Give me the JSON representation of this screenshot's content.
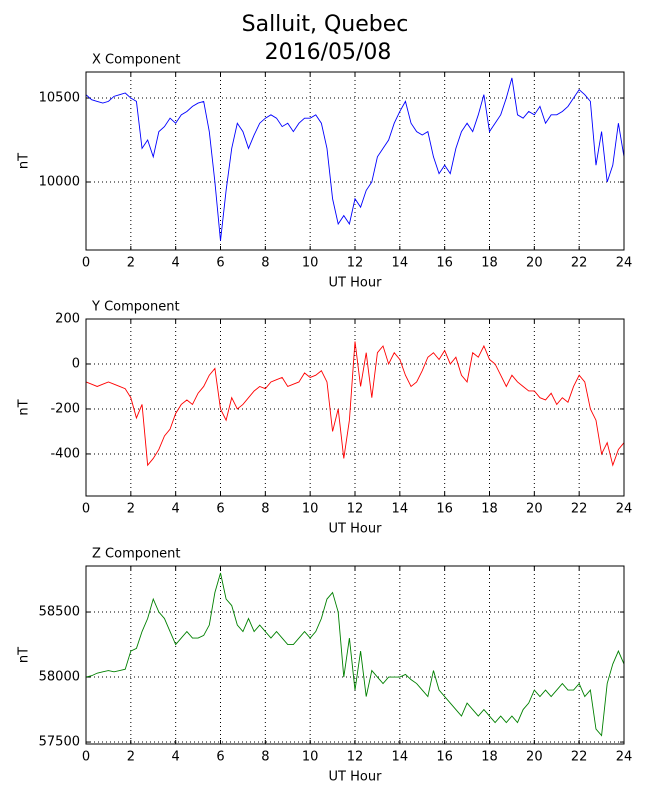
{
  "figure": {
    "title": "Salluit, Quebec",
    "subtitle": "2016/05/08"
  },
  "chart_data": [
    {
      "type": "line",
      "title": "X Component",
      "xlabel": "UT Hour",
      "ylabel": "nT",
      "color": "#0000ff",
      "grid": true,
      "xlim": [
        0,
        24
      ],
      "xticks": [
        0,
        2,
        4,
        6,
        8,
        10,
        12,
        14,
        16,
        18,
        20,
        22,
        24
      ],
      "ylim": [
        9595,
        10655
      ],
      "yticks": [
        10000,
        10500
      ],
      "x": [
        0,
        0.25,
        0.5,
        0.75,
        1,
        1.25,
        1.5,
        1.75,
        2,
        2.25,
        2.5,
        2.75,
        3,
        3.25,
        3.5,
        3.75,
        4,
        4.25,
        4.5,
        4.75,
        5,
        5.25,
        5.5,
        5.75,
        6,
        6.25,
        6.5,
        6.75,
        7,
        7.25,
        7.5,
        7.75,
        8,
        8.25,
        8.5,
        8.75,
        9,
        9.25,
        9.5,
        9.75,
        10,
        10.25,
        10.5,
        10.75,
        11,
        11.25,
        11.5,
        11.75,
        12,
        12.25,
        12.5,
        12.75,
        13,
        13.25,
        13.5,
        13.75,
        14,
        14.25,
        14.5,
        14.75,
        15,
        15.25,
        15.5,
        15.75,
        16,
        16.25,
        16.5,
        16.75,
        17,
        17.25,
        17.5,
        17.75,
        18,
        18.25,
        18.5,
        18.75,
        19,
        19.25,
        19.5,
        19.75,
        20,
        20.25,
        20.5,
        20.75,
        21,
        21.25,
        21.5,
        21.75,
        22,
        22.25,
        22.5,
        22.75,
        23,
        23.25,
        23.5,
        23.75,
        24
      ],
      "values": [
        10520,
        10490,
        10480,
        10470,
        10480,
        10510,
        10520,
        10530,
        10500,
        10480,
        10200,
        10250,
        10150,
        10300,
        10330,
        10380,
        10350,
        10400,
        10420,
        10450,
        10470,
        10480,
        10300,
        10000,
        9650,
        9950,
        10200,
        10350,
        10300,
        10200,
        10280,
        10350,
        10380,
        10400,
        10380,
        10330,
        10350,
        10300,
        10350,
        10380,
        10380,
        10400,
        10350,
        10200,
        9900,
        9750,
        9800,
        9750,
        9900,
        9850,
        9950,
        10000,
        10150,
        10200,
        10250,
        10350,
        10420,
        10480,
        10350,
        10300,
        10280,
        10300,
        10150,
        10050,
        10100,
        10050,
        10200,
        10300,
        10350,
        10300,
        10400,
        10520,
        10300,
        10350,
        10400,
        10500,
        10620,
        10400,
        10380,
        10420,
        10400,
        10450,
        10350,
        10400,
        10400,
        10420,
        10450,
        10500,
        10550,
        10520,
        10480,
        10100,
        10300,
        10000,
        10100,
        10350,
        10150
      ]
    },
    {
      "type": "line",
      "title": "Y Component",
      "xlabel": "UT Hour",
      "ylabel": "nT",
      "color": "#ff0000",
      "grid": true,
      "xlim": [
        0,
        24
      ],
      "xticks": [
        0,
        2,
        4,
        6,
        8,
        10,
        12,
        14,
        16,
        18,
        20,
        22,
        24
      ],
      "ylim": [
        -587,
        200
      ],
      "yticks": [
        -400,
        -200,
        0,
        200
      ],
      "x": [
        0,
        0.25,
        0.5,
        0.75,
        1,
        1.25,
        1.5,
        1.75,
        2,
        2.25,
        2.5,
        2.75,
        3,
        3.25,
        3.5,
        3.75,
        4,
        4.25,
        4.5,
        4.75,
        5,
        5.25,
        5.5,
        5.75,
        6,
        6.25,
        6.5,
        6.75,
        7,
        7.25,
        7.5,
        7.75,
        8,
        8.25,
        8.5,
        8.75,
        9,
        9.25,
        9.5,
        9.75,
        10,
        10.25,
        10.5,
        10.75,
        11,
        11.25,
        11.5,
        11.75,
        12,
        12.25,
        12.5,
        12.75,
        13,
        13.25,
        13.5,
        13.75,
        14,
        14.25,
        14.5,
        14.75,
        15,
        15.25,
        15.5,
        15.75,
        16,
        16.25,
        16.5,
        16.75,
        17,
        17.25,
        17.5,
        17.75,
        18,
        18.25,
        18.5,
        18.75,
        19,
        19.25,
        19.5,
        19.75,
        20,
        20.25,
        20.5,
        20.75,
        21,
        21.25,
        21.5,
        21.75,
        22,
        22.25,
        22.5,
        22.75,
        23,
        23.25,
        23.5,
        23.75,
        24
      ],
      "values": [
        -80,
        -90,
        -100,
        -90,
        -80,
        -90,
        -100,
        -110,
        -150,
        -240,
        -180,
        -450,
        -420,
        -380,
        -320,
        -290,
        -220,
        -180,
        -160,
        -180,
        -130,
        -100,
        -50,
        -20,
        -200,
        -250,
        -150,
        -200,
        -180,
        -150,
        -120,
        -100,
        -110,
        -80,
        -70,
        -60,
        -100,
        -90,
        -80,
        -40,
        -60,
        -50,
        -30,
        -80,
        -300,
        -200,
        -420,
        -250,
        100,
        -100,
        50,
        -150,
        50,
        80,
        0,
        50,
        20,
        -50,
        -100,
        -80,
        -30,
        30,
        50,
        20,
        60,
        0,
        30,
        -50,
        -80,
        50,
        30,
        80,
        20,
        0,
        -50,
        -100,
        -50,
        -80,
        -100,
        -120,
        -120,
        -150,
        -160,
        -130,
        -180,
        -150,
        -170,
        -100,
        -50,
        -80,
        -200,
        -250,
        -400,
        -350,
        -450,
        -380,
        -350
      ]
    },
    {
      "type": "line",
      "title": "Z Component",
      "xlabel": "UT Hour",
      "ylabel": "nT",
      "color": "#008000",
      "grid": true,
      "xlim": [
        0,
        24
      ],
      "xticks": [
        0,
        2,
        4,
        6,
        8,
        10,
        12,
        14,
        16,
        18,
        20,
        22,
        24
      ],
      "ylim": [
        57485,
        58854
      ],
      "yticks": [
        57500,
        58000,
        58500
      ],
      "x": [
        0,
        0.25,
        0.5,
        0.75,
        1,
        1.25,
        1.5,
        1.75,
        2,
        2.25,
        2.5,
        2.75,
        3,
        3.25,
        3.5,
        3.75,
        4,
        4.25,
        4.5,
        4.75,
        5,
        5.25,
        5.5,
        5.75,
        6,
        6.25,
        6.5,
        6.75,
        7,
        7.25,
        7.5,
        7.75,
        8,
        8.25,
        8.5,
        8.75,
        9,
        9.25,
        9.5,
        9.75,
        10,
        10.25,
        10.5,
        10.75,
        11,
        11.25,
        11.5,
        11.75,
        12,
        12.25,
        12.5,
        12.75,
        13,
        13.25,
        13.5,
        13.75,
        14,
        14.25,
        14.5,
        14.75,
        15,
        15.25,
        15.5,
        15.75,
        16,
        16.25,
        16.5,
        16.75,
        17,
        17.25,
        17.5,
        17.75,
        18,
        18.25,
        18.5,
        18.75,
        19,
        19.25,
        19.5,
        19.75,
        20,
        20.25,
        20.5,
        20.75,
        21,
        21.25,
        21.5,
        21.75,
        22,
        22.25,
        22.5,
        22.75,
        23,
        23.25,
        23.5,
        23.75,
        24
      ],
      "values": [
        58000,
        58010,
        58030,
        58040,
        58050,
        58040,
        58050,
        58060,
        58200,
        58220,
        58350,
        58450,
        58600,
        58500,
        58450,
        58350,
        58250,
        58300,
        58350,
        58300,
        58300,
        58320,
        58400,
        58650,
        58800,
        58600,
        58550,
        58400,
        58350,
        58450,
        58350,
        58400,
        58350,
        58300,
        58350,
        58300,
        58250,
        58250,
        58300,
        58350,
        58300,
        58350,
        58450,
        58600,
        58650,
        58500,
        58000,
        58300,
        57900,
        58200,
        57850,
        58050,
        58000,
        57950,
        58000,
        58000,
        58000,
        58020,
        57980,
        57950,
        57900,
        57850,
        58050,
        57900,
        57850,
        57800,
        57750,
        57700,
        57800,
        57750,
        57700,
        57750,
        57700,
        57650,
        57700,
        57650,
        57700,
        57650,
        57750,
        57800,
        57900,
        57850,
        57900,
        57850,
        57900,
        57950,
        57900,
        57900,
        57950,
        57850,
        57900,
        57600,
        57550,
        57950,
        58100,
        58200,
        58100
      ]
    }
  ]
}
